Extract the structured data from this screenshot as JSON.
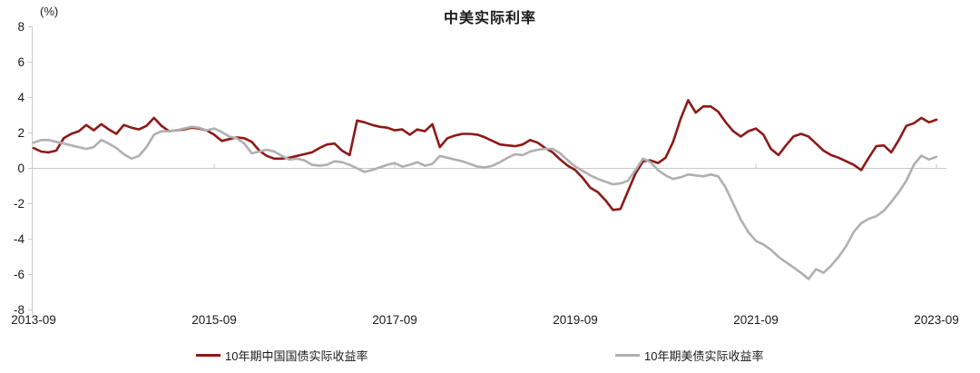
{
  "title": "中美实际利率",
  "y_axis": {
    "unit": "(%)",
    "tick_labels": [
      "8",
      "6",
      "4",
      "2",
      "0",
      "-2",
      "-4",
      "-6",
      "-8"
    ],
    "max": 8,
    "min": -8
  },
  "x_axis": {
    "tick_labels": [
      "2013-09",
      "2015-09",
      "2017-09",
      "2019-09",
      "2021-09",
      "2023-09"
    ]
  },
  "legend": {
    "china_label": "10年期中国国债实际收益率",
    "us_label": "10年期美债实际收益率"
  },
  "colors": {
    "china_line": "#8B1A17",
    "us_line": "#B0B0B0",
    "axis": "#C9C9C9",
    "text": "#1A1A1A"
  },
  "chart_data": {
    "type": "line",
    "title": "中美实际利率",
    "y_unit": "%",
    "ylim": [
      -8,
      8
    ],
    "y_ticks": [
      8,
      6,
      4,
      2,
      0,
      -2,
      -4,
      -6,
      -8
    ],
    "x_start": "2013-09",
    "x_end": "2023-09",
    "frequency": "monthly",
    "x_tick_labels": [
      "2013-09",
      "2015-09",
      "2017-09",
      "2019-09",
      "2021-09",
      "2023-09"
    ],
    "x_tick_interval_months": 24,
    "grid": false,
    "zero_line": true,
    "legend_position": "bottom",
    "series": [
      {
        "name": "10年期中国国债实际收益率",
        "color": "#8B1A17",
        "values": [
          1.15,
          0.95,
          0.9,
          1.0,
          1.7,
          1.95,
          2.1,
          2.45,
          2.15,
          2.5,
          2.2,
          1.95,
          2.45,
          2.3,
          2.2,
          2.4,
          2.85,
          2.4,
          2.1,
          2.15,
          2.2,
          2.3,
          2.25,
          2.15,
          1.9,
          1.55,
          1.65,
          1.75,
          1.7,
          1.5,
          1.0,
          0.7,
          0.55,
          0.55,
          0.6,
          0.7,
          0.8,
          0.9,
          1.15,
          1.35,
          1.4,
          1.0,
          0.75,
          2.7,
          2.6,
          2.45,
          2.35,
          2.3,
          2.15,
          2.2,
          1.9,
          2.2,
          2.1,
          2.5,
          1.2,
          1.7,
          1.85,
          1.95,
          1.95,
          1.9,
          1.75,
          1.55,
          1.35,
          1.3,
          1.25,
          1.35,
          1.6,
          1.45,
          1.15,
          0.9,
          0.5,
          0.15,
          -0.1,
          -0.55,
          -1.1,
          -1.35,
          -1.8,
          -2.35,
          -2.3,
          -1.3,
          -0.3,
          0.4,
          0.45,
          0.3,
          0.6,
          1.5,
          2.8,
          3.85,
          3.15,
          3.5,
          3.5,
          3.2,
          2.6,
          2.1,
          1.8,
          2.1,
          2.25,
          1.9,
          1.1,
          0.75,
          1.3,
          1.8,
          1.95,
          1.8,
          1.4,
          1.0,
          0.75,
          0.6,
          0.4,
          0.2,
          -0.1,
          0.6,
          1.25,
          1.3,
          0.9,
          1.6,
          2.4,
          2.55,
          2.85,
          2.6,
          2.75
        ]
      },
      {
        "name": "10年期美债实际收益率",
        "color": "#B0B0B0",
        "values": [
          1.45,
          1.6,
          1.6,
          1.5,
          1.4,
          1.3,
          1.2,
          1.1,
          1.2,
          1.6,
          1.4,
          1.15,
          0.8,
          0.55,
          0.7,
          1.2,
          1.9,
          2.1,
          2.1,
          2.15,
          2.25,
          2.35,
          2.3,
          2.15,
          2.25,
          2.05,
          1.8,
          1.7,
          1.4,
          0.85,
          0.95,
          1.05,
          0.95,
          0.7,
          0.5,
          0.55,
          0.45,
          0.2,
          0.15,
          0.2,
          0.4,
          0.35,
          0.2,
          0.0,
          -0.2,
          -0.1,
          0.05,
          0.2,
          0.3,
          0.1,
          0.2,
          0.35,
          0.15,
          0.25,
          0.7,
          0.6,
          0.5,
          0.4,
          0.25,
          0.1,
          0.05,
          0.15,
          0.35,
          0.6,
          0.8,
          0.75,
          0.95,
          1.05,
          1.1,
          1.1,
          0.85,
          0.45,
          0.1,
          -0.15,
          -0.4,
          -0.6,
          -0.75,
          -0.9,
          -0.85,
          -0.7,
          -0.1,
          0.55,
          0.35,
          -0.1,
          -0.4,
          -0.6,
          -0.5,
          -0.35,
          -0.4,
          -0.45,
          -0.35,
          -0.45,
          -1.1,
          -2.0,
          -2.9,
          -3.6,
          -4.1,
          -4.3,
          -4.6,
          -5.0,
          -5.3,
          -5.6,
          -5.9,
          -6.25,
          -5.7,
          -5.9,
          -5.5,
          -5.0,
          -4.4,
          -3.6,
          -3.1,
          -2.85,
          -2.7,
          -2.4,
          -1.9,
          -1.35,
          -0.7,
          0.2,
          0.72,
          0.5,
          0.65
        ]
      }
    ]
  }
}
